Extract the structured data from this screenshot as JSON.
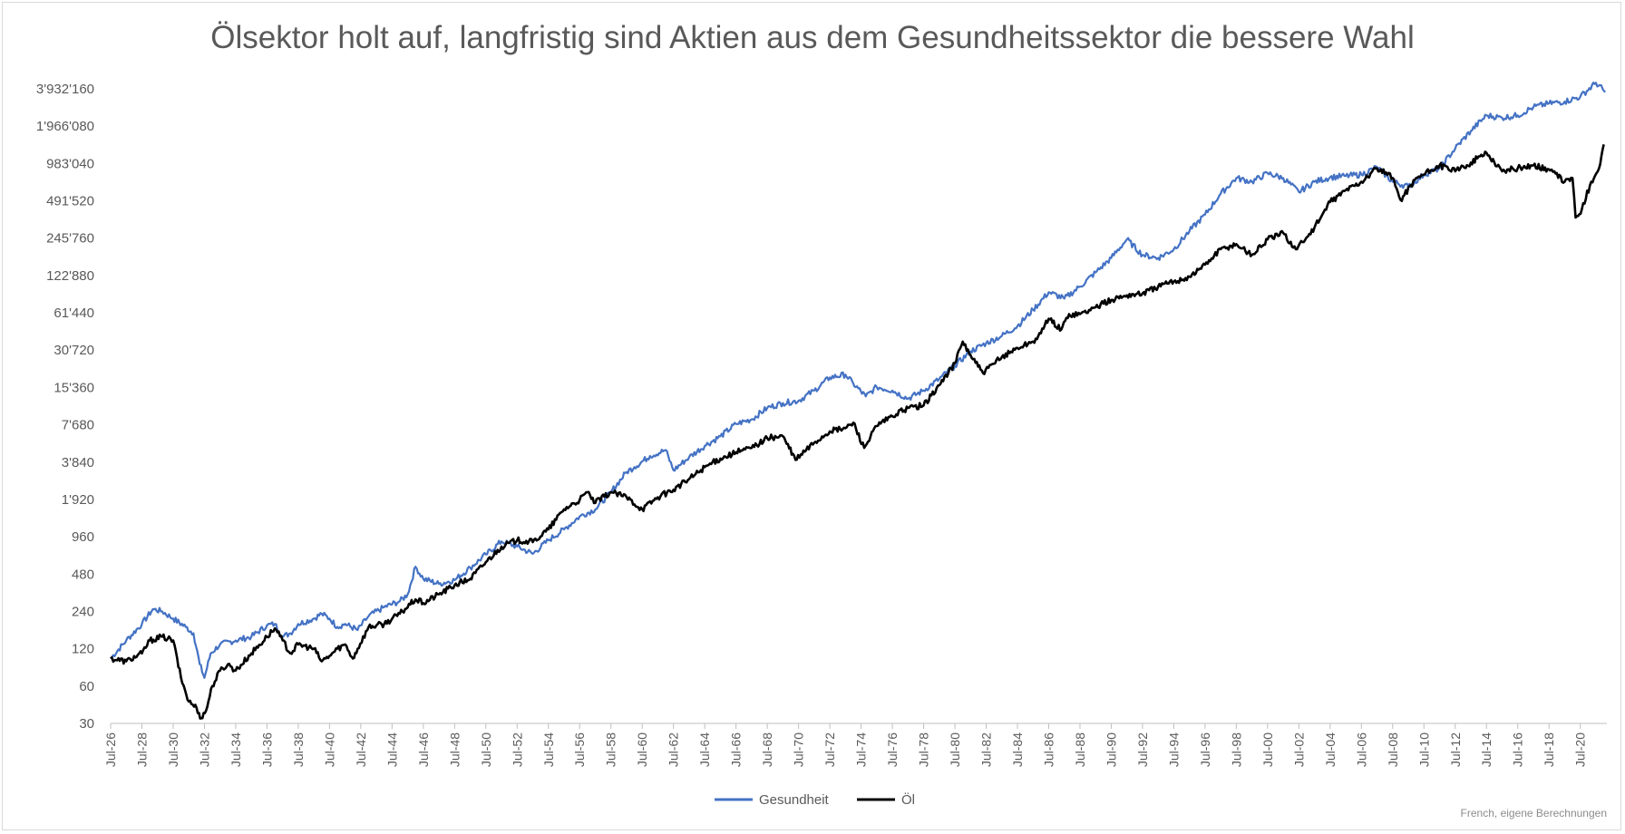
{
  "chart_data": {
    "type": "line",
    "title": "Ölsektor holt auf, langfristig sind Aktien aus dem Gesundheitssektor die bessere Wahl",
    "source": "French, eigene Berechnungen",
    "y_scale": "log2",
    "ylim": [
      30,
      3932160
    ],
    "y_ticks": [
      30,
      60,
      120,
      240,
      480,
      960,
      1920,
      3840,
      7680,
      15360,
      30720,
      61440,
      122880,
      245760,
      491520,
      983040,
      1966080,
      3932160
    ],
    "y_tick_labels": [
      "30",
      "60",
      "120",
      "240",
      "480",
      "960",
      "1'920",
      "3'840",
      "7'680",
      "15'360",
      "30'720",
      "61'440",
      "122'880",
      "245'760",
      "491'520",
      "983'040",
      "1'966'080",
      "3'932'160"
    ],
    "xlim": [
      1926.5,
      2022.2
    ],
    "x_ticks": [
      1926.5,
      1928.5,
      1930.5,
      1932.5,
      1934.5,
      1936.5,
      1938.5,
      1940.5,
      1942.5,
      1944.5,
      1946.5,
      1948.5,
      1950.5,
      1952.5,
      1954.5,
      1956.5,
      1958.5,
      1960.5,
      1962.5,
      1964.5,
      1966.5,
      1968.5,
      1970.5,
      1972.5,
      1974.5,
      1976.5,
      1978.5,
      1980.5,
      1982.5,
      1984.5,
      1986.5,
      1988.5,
      1990.5,
      1992.5,
      1994.5,
      1996.5,
      1998.5,
      2000.5,
      2002.5,
      2004.5,
      2006.5,
      2008.5,
      2010.5,
      2012.5,
      2014.5,
      2016.5,
      2018.5,
      2020.5
    ],
    "x_tick_labels": [
      "Jul-26",
      "Jul-28",
      "Jul-30",
      "Jul-32",
      "Jul-34",
      "Jul-36",
      "Jul-38",
      "Jul-40",
      "Jul-42",
      "Jul-44",
      "Jul-46",
      "Jul-48",
      "Jul-50",
      "Jul-52",
      "Jul-54",
      "Jul-56",
      "Jul-58",
      "Jul-60",
      "Jul-62",
      "Jul-64",
      "Jul-66",
      "Jul-68",
      "Jul-70",
      "Jul-72",
      "Jul-74",
      "Jul-76",
      "Jul-78",
      "Jul-80",
      "Jul-82",
      "Jul-84",
      "Jul-86",
      "Jul-88",
      "Jul-90",
      "Jul-92",
      "Jul-94",
      "Jul-96",
      "Jul-98",
      "Jul-00",
      "Jul-02",
      "Jul-04",
      "Jul-06",
      "Jul-08",
      "Jul-10",
      "Jul-12",
      "Jul-14",
      "Jul-16",
      "Jul-18",
      "Jul-20"
    ],
    "grid": false,
    "legend": "bottom",
    "series": [
      {
        "name": "Gesundheit",
        "color": "#4472c4",
        "x": [
          1926.5,
          1927.5,
          1928.5,
          1929.2,
          1929.8,
          1930.5,
          1931.3,
          1931.8,
          1932.2,
          1932.5,
          1932.9,
          1933.5,
          1934.5,
          1935.5,
          1936.5,
          1937.0,
          1937.5,
          1938.0,
          1938.5,
          1939.5,
          1940.0,
          1940.5,
          1941.0,
          1941.5,
          1942.3,
          1943.0,
          1944.0,
          1945.0,
          1945.5,
          1946.0,
          1946.5,
          1947.5,
          1948.5,
          1949.5,
          1950.5,
          1951.5,
          1952.5,
          1953.5,
          1954.5,
          1955.5,
          1956.5,
          1957.5,
          1958.5,
          1959.5,
          1960.0,
          1961.0,
          1962.0,
          1962.5,
          1963.5,
          1964.5,
          1965.5,
          1966.5,
          1967.5,
          1968.5,
          1969.5,
          1970.5,
          1971.5,
          1972.5,
          1973.5,
          1974.0,
          1974.8,
          1975.5,
          1976.5,
          1977.5,
          1978.5,
          1979.5,
          1980.5,
          1981.5,
          1982.5,
          1983.5,
          1984.5,
          1985.5,
          1986.5,
          1987.5,
          1988.5,
          1989.5,
          1990.5,
          1991.5,
          1992.5,
          1993.5,
          1994.5,
          1995.5,
          1996.5,
          1997.5,
          1998.5,
          1999.5,
          2000.5,
          2001.5,
          2002.5,
          2003.5,
          2004.5,
          2005.5,
          2006.5,
          2007.5,
          2008.5,
          2009.5,
          2010.5,
          2011.5,
          2012.5,
          2013.5,
          2014.5,
          2015.5,
          2016.5,
          2017.5,
          2018.5,
          2019.5,
          2020.5,
          2021.5,
          2022.1
        ],
        "y": [
          100,
          140,
          190,
          250,
          240,
          210,
          180,
          160,
          90,
          70,
          110,
          130,
          140,
          150,
          185,
          190,
          150,
          160,
          190,
          210,
          230,
          210,
          180,
          190,
          170,
          220,
          260,
          290,
          330,
          550,
          440,
          400,
          430,
          540,
          690,
          880,
          800,
          700,
          900,
          1100,
          1400,
          1600,
          2200,
          3200,
          3500,
          4300,
          4800,
          3300,
          4200,
          5200,
          6200,
          7800,
          8500,
          10500,
          11500,
          12000,
          14500,
          18500,
          19500,
          16500,
          13000,
          15500,
          14500,
          12500,
          14500,
          18000,
          23000,
          30000,
          35000,
          40000,
          48000,
          65000,
          90000,
          80000,
          100000,
          130000,
          170000,
          240000,
          180000,
          170000,
          200000,
          280000,
          380000,
          560000,
          750000,
          700000,
          820000,
          750000,
          580000,
          700000,
          760000,
          780000,
          800000,
          920000,
          700000,
          640000,
          800000,
          900000,
          1300000,
          1800000,
          2400000,
          2300000,
          2400000,
          2800000,
          3000000,
          3100000,
          3400000,
          4400000,
          3700000
        ]
      },
      {
        "name": "Öl",
        "color": "#000000",
        "x": [
          1926.5,
          1927.5,
          1928.5,
          1929.0,
          1929.8,
          1930.5,
          1931.0,
          1931.5,
          1932.0,
          1932.3,
          1932.6,
          1933.0,
          1933.5,
          1934.0,
          1934.5,
          1935.5,
          1936.5,
          1937.0,
          1937.5,
          1938.0,
          1938.5,
          1939.5,
          1940.0,
          1940.5,
          1941.0,
          1941.5,
          1942.0,
          1942.3,
          1943.0,
          1944.0,
          1945.0,
          1946.0,
          1946.5,
          1947.5,
          1948.5,
          1949.5,
          1950.5,
          1951.5,
          1952.5,
          1953.5,
          1954.5,
          1955.5,
          1956.5,
          1957.0,
          1957.5,
          1958.5,
          1959.5,
          1960.5,
          1961.5,
          1962.5,
          1963.5,
          1964.5,
          1965.5,
          1966.5,
          1967.5,
          1968.5,
          1969.5,
          1970.3,
          1971.5,
          1972.5,
          1973.5,
          1974.0,
          1974.7,
          1975.5,
          1976.5,
          1977.5,
          1978.5,
          1979.5,
          1980.5,
          1981.0,
          1981.5,
          1982.3,
          1983.5,
          1984.5,
          1985.5,
          1986.0,
          1986.5,
          1987.3,
          1987.8,
          1988.5,
          1989.5,
          1990.5,
          1991.5,
          1992.5,
          1993.5,
          1994.5,
          1995.5,
          1996.5,
          1997.5,
          1998.5,
          1999.5,
          2000.5,
          2001.5,
          2002.3,
          2003.0,
          2003.5,
          2004.5,
          2005.5,
          2006.5,
          2007.5,
          2008.5,
          2009.0,
          2010.0,
          2010.5,
          2011.5,
          2012.5,
          2013.5,
          2014.5,
          2015.5,
          2016.5,
          2017.5,
          2018.5,
          2019.5,
          2020.0,
          2020.2,
          2020.6,
          2021.2,
          2021.7,
          2022.0
        ],
        "y": [
          100,
          95,
          110,
          140,
          150,
          140,
          70,
          45,
          40,
          33,
          38,
          60,
          80,
          90,
          80,
          110,
          150,
          175,
          140,
          110,
          130,
          120,
          95,
          105,
          120,
          130,
          100,
          120,
          180,
          190,
          230,
          300,
          280,
          330,
          390,
          440,
          600,
          800,
          900,
          870,
          1100,
          1600,
          1900,
          2200,
          1800,
          2200,
          2000,
          1600,
          2000,
          2300,
          2800,
          3500,
          4100,
          4600,
          5000,
          6000,
          6200,
          4000,
          5500,
          6800,
          7200,
          8000,
          5000,
          7500,
          9000,
          10500,
          11000,
          16000,
          24000,
          36000,
          28000,
          20000,
          27000,
          32000,
          36000,
          42000,
          55000,
          45000,
          60000,
          60000,
          68000,
          78000,
          85000,
          88000,
          100000,
          110000,
          120000,
          150000,
          200000,
          220000,
          180000,
          240000,
          270000,
          200000,
          250000,
          300000,
          480000,
          600000,
          700000,
          900000,
          750000,
          500000,
          750000,
          800000,
          950000,
          850000,
          1000000,
          1200000,
          850000,
          900000,
          950000,
          880000,
          700000,
          750000,
          360000,
          420000,
          700000,
          900000,
          1400000
        ]
      }
    ]
  }
}
